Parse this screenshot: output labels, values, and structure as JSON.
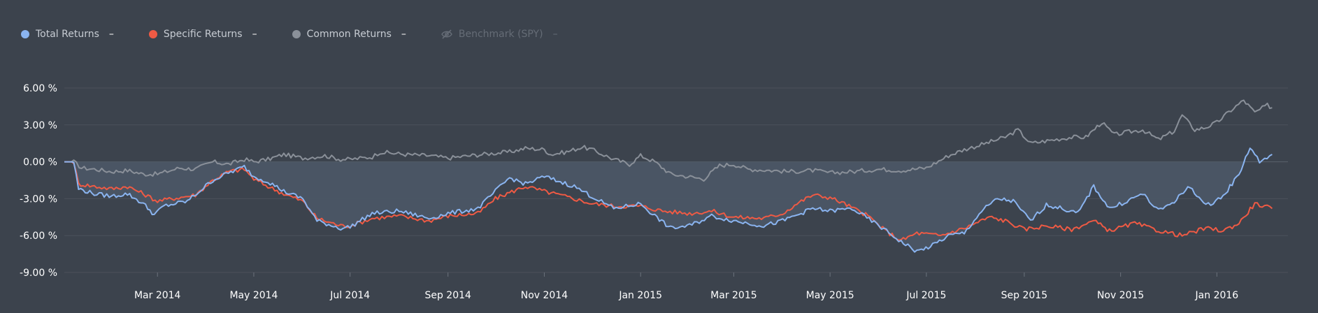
{
  "legend": {
    "items": [
      {
        "label": "Total Returns",
        "value": "–",
        "color": "#8ab4f0",
        "icon": "dot"
      },
      {
        "label": "Specific Returns",
        "value": "–",
        "color": "#ef5a44",
        "icon": "dot"
      },
      {
        "label": "Common Returns",
        "value": "–",
        "color": "#8a9099",
        "icon": "dot"
      },
      {
        "label": "Benchmark (SPY)",
        "value": "–",
        "color": "#656c76",
        "icon": "eye-off-icon",
        "disabled": true
      }
    ]
  },
  "chart_data": {
    "type": "line",
    "title": "",
    "xlabel": "",
    "ylabel": "",
    "ylim": [
      -9,
      6
    ],
    "xlim": [
      "2014-01-01",
      "2016-02-15"
    ],
    "y_ticks": [
      "6.00 %",
      "3.00 %",
      "0.00 %",
      "-3.00 %",
      "-6.00 %",
      "-9.00 %"
    ],
    "y_tick_values": [
      6,
      3,
      0,
      -3,
      -6,
      -9
    ],
    "x_ticks": [
      {
        "date": "2014-03-01",
        "label": "Mar 2014"
      },
      {
        "date": "2014-05-01",
        "label": "May 2014"
      },
      {
        "date": "2014-07-01",
        "label": "Jul 2014"
      },
      {
        "date": "2014-09-01",
        "label": "Sep 2014"
      },
      {
        "date": "2014-11-01",
        "label": "Nov 2014"
      },
      {
        "date": "2015-01-01",
        "label": "Jan 2015"
      },
      {
        "date": "2015-03-01",
        "label": "Mar 2015"
      },
      {
        "date": "2015-05-01",
        "label": "May 2015"
      },
      {
        "date": "2015-07-01",
        "label": "Jul 2015"
      },
      {
        "date": "2015-09-01",
        "label": "Sep 2015"
      },
      {
        "date": "2015-11-01",
        "label": "Nov 2015"
      },
      {
        "date": "2016-01-01",
        "label": "Jan 2016"
      }
    ],
    "grid": true,
    "legend_position": "top-left",
    "series": [
      {
        "name": "Common Returns",
        "color": "#8a9099",
        "points": [
          [
            "2014-01-01",
            0.0
          ],
          [
            "2014-01-07",
            0.0
          ],
          [
            "2014-01-12",
            -0.5
          ],
          [
            "2014-01-20",
            -0.6
          ],
          [
            "2014-01-31",
            -0.8
          ],
          [
            "2014-02-10",
            -0.7
          ],
          [
            "2014-02-20",
            -1.0
          ],
          [
            "2014-03-01",
            -1.0
          ],
          [
            "2014-03-15",
            -0.5
          ],
          [
            "2014-03-25",
            -0.6
          ],
          [
            "2014-04-05",
            0.0
          ],
          [
            "2014-04-15",
            -0.2
          ],
          [
            "2014-04-25",
            0.2
          ],
          [
            "2014-05-01",
            0.0
          ],
          [
            "2014-05-10",
            0.2
          ],
          [
            "2014-05-20",
            0.6
          ],
          [
            "2014-06-01",
            0.3
          ],
          [
            "2014-06-15",
            0.5
          ],
          [
            "2014-06-25",
            0.2
          ],
          [
            "2014-07-01",
            0.2
          ],
          [
            "2014-07-15",
            0.4
          ],
          [
            "2014-07-20",
            0.8
          ],
          [
            "2014-08-05",
            0.6
          ],
          [
            "2014-08-20",
            0.5
          ],
          [
            "2014-09-01",
            0.3
          ],
          [
            "2014-09-15",
            0.5
          ],
          [
            "2014-09-30",
            0.7
          ],
          [
            "2014-10-10",
            0.8
          ],
          [
            "2014-10-20",
            1.1
          ],
          [
            "2014-11-01",
            1.0
          ],
          [
            "2014-11-05",
            0.6
          ],
          [
            "2014-11-15",
            0.8
          ],
          [
            "2014-11-25",
            1.2
          ],
          [
            "2014-12-01",
            1.0
          ],
          [
            "2014-12-15",
            0.2
          ],
          [
            "2014-12-25",
            -0.2
          ],
          [
            "2015-01-01",
            0.5
          ],
          [
            "2015-01-10",
            0.0
          ],
          [
            "2015-01-20",
            -1.0
          ],
          [
            "2015-01-31",
            -1.2
          ],
          [
            "2015-02-10",
            -1.4
          ],
          [
            "2015-02-20",
            -0.3
          ],
          [
            "2015-03-01",
            -0.2
          ],
          [
            "2015-03-10",
            -0.6
          ],
          [
            "2015-03-25",
            -0.7
          ],
          [
            "2015-04-05",
            -0.8
          ],
          [
            "2015-04-20",
            -0.7
          ],
          [
            "2015-05-01",
            -0.9
          ],
          [
            "2015-05-15",
            -0.8
          ],
          [
            "2015-06-01",
            -0.6
          ],
          [
            "2015-06-15",
            -0.7
          ],
          [
            "2015-07-01",
            -0.5
          ],
          [
            "2015-07-15",
            0.5
          ],
          [
            "2015-07-25",
            1.0
          ],
          [
            "2015-08-05",
            1.4
          ],
          [
            "2015-08-20",
            2.0
          ],
          [
            "2015-08-28",
            2.6
          ],
          [
            "2015-09-05",
            1.5
          ],
          [
            "2015-09-20",
            1.8
          ],
          [
            "2015-10-01",
            2.0
          ],
          [
            "2015-10-10",
            2.0
          ],
          [
            "2015-10-20",
            3.2
          ],
          [
            "2015-10-28",
            2.2
          ],
          [
            "2015-11-05",
            2.4
          ],
          [
            "2015-11-15",
            2.6
          ],
          [
            "2015-11-25",
            1.8
          ],
          [
            "2015-12-05",
            2.5
          ],
          [
            "2015-12-10",
            3.8
          ],
          [
            "2015-12-18",
            2.6
          ],
          [
            "2015-12-25",
            2.8
          ],
          [
            "2016-01-01",
            3.2
          ],
          [
            "2016-01-10",
            4.2
          ],
          [
            "2016-01-18",
            5.0
          ],
          [
            "2016-01-25",
            4.0
          ],
          [
            "2016-02-02",
            4.6
          ],
          [
            "2016-02-05",
            4.4
          ]
        ]
      },
      {
        "name": "Specific Returns",
        "color": "#ef5a44",
        "points": [
          [
            "2014-01-01",
            0.0
          ],
          [
            "2014-01-07",
            0.0
          ],
          [
            "2014-01-10",
            -1.8
          ],
          [
            "2014-01-20",
            -2.0
          ],
          [
            "2014-01-31",
            -2.2
          ],
          [
            "2014-02-10",
            -2.0
          ],
          [
            "2014-02-20",
            -2.6
          ],
          [
            "2014-03-01",
            -3.2
          ],
          [
            "2014-03-10",
            -3.0
          ],
          [
            "2014-03-25",
            -2.7
          ],
          [
            "2014-04-05",
            -1.5
          ],
          [
            "2014-04-15",
            -0.8
          ],
          [
            "2014-04-25",
            -0.6
          ],
          [
            "2014-05-01",
            -1.4
          ],
          [
            "2014-05-10",
            -2.0
          ],
          [
            "2014-05-20",
            -2.6
          ],
          [
            "2014-06-01",
            -3.2
          ],
          [
            "2014-06-10",
            -4.6
          ],
          [
            "2014-06-25",
            -5.2
          ],
          [
            "2014-07-01",
            -5.2
          ],
          [
            "2014-07-15",
            -4.6
          ],
          [
            "2014-08-01",
            -4.4
          ],
          [
            "2014-08-20",
            -4.8
          ],
          [
            "2014-09-01",
            -4.4
          ],
          [
            "2014-09-20",
            -4.2
          ],
          [
            "2014-10-01",
            -3.0
          ],
          [
            "2014-10-10",
            -2.5
          ],
          [
            "2014-10-20",
            -2.0
          ],
          [
            "2014-11-01",
            -2.4
          ],
          [
            "2014-11-20",
            -3.0
          ],
          [
            "2014-12-01",
            -3.4
          ],
          [
            "2014-12-15",
            -3.6
          ],
          [
            "2015-01-01",
            -3.6
          ],
          [
            "2015-01-15",
            -4.0
          ],
          [
            "2015-02-01",
            -4.2
          ],
          [
            "2015-02-15",
            -4.0
          ],
          [
            "2015-03-01",
            -4.5
          ],
          [
            "2015-03-20",
            -4.6
          ],
          [
            "2015-04-01",
            -4.2
          ],
          [
            "2015-04-10",
            -3.4
          ],
          [
            "2015-04-20",
            -2.7
          ],
          [
            "2015-05-01",
            -2.9
          ],
          [
            "2015-05-10",
            -3.4
          ],
          [
            "2015-05-25",
            -4.4
          ],
          [
            "2015-06-05",
            -5.6
          ],
          [
            "2015-06-15",
            -6.4
          ],
          [
            "2015-06-25",
            -5.8
          ],
          [
            "2015-07-10",
            -6.0
          ],
          [
            "2015-07-25",
            -5.4
          ],
          [
            "2015-08-10",
            -4.5
          ],
          [
            "2015-08-20",
            -4.8
          ],
          [
            "2015-09-01",
            -5.5
          ],
          [
            "2015-09-15",
            -5.2
          ],
          [
            "2015-10-01",
            -5.5
          ],
          [
            "2015-10-15",
            -4.8
          ],
          [
            "2015-10-25",
            -5.6
          ],
          [
            "2015-11-10",
            -5.0
          ],
          [
            "2015-11-25",
            -5.6
          ],
          [
            "2015-12-10",
            -6.0
          ],
          [
            "2015-12-25",
            -5.4
          ],
          [
            "2016-01-05",
            -5.6
          ],
          [
            "2016-01-15",
            -5.0
          ],
          [
            "2016-01-25",
            -3.4
          ],
          [
            "2016-02-05",
            -3.8
          ]
        ]
      },
      {
        "name": "Total Returns",
        "color": "#8ab4f0",
        "points": [
          [
            "2014-01-01",
            0.0
          ],
          [
            "2014-01-07",
            0.0
          ],
          [
            "2014-01-10",
            -2.2
          ],
          [
            "2014-01-20",
            -2.6
          ],
          [
            "2014-01-31",
            -2.8
          ],
          [
            "2014-02-10",
            -2.6
          ],
          [
            "2014-02-20",
            -3.4
          ],
          [
            "2014-02-27",
            -4.3
          ],
          [
            "2014-03-05",
            -3.6
          ],
          [
            "2014-03-20",
            -3.2
          ],
          [
            "2014-04-05",
            -1.5
          ],
          [
            "2014-04-15",
            -0.9
          ],
          [
            "2014-04-25",
            -0.4
          ],
          [
            "2014-05-01",
            -1.2
          ],
          [
            "2014-05-10",
            -1.6
          ],
          [
            "2014-05-20",
            -2.4
          ],
          [
            "2014-06-01",
            -3.0
          ],
          [
            "2014-06-10",
            -4.8
          ],
          [
            "2014-06-25",
            -5.4
          ],
          [
            "2014-07-01",
            -5.3
          ],
          [
            "2014-07-15",
            -4.2
          ],
          [
            "2014-08-01",
            -4.0
          ],
          [
            "2014-08-20",
            -4.6
          ],
          [
            "2014-09-01",
            -4.2
          ],
          [
            "2014-09-20",
            -3.8
          ],
          [
            "2014-10-01",
            -2.4
          ],
          [
            "2014-10-10",
            -1.3
          ],
          [
            "2014-10-20",
            -1.8
          ],
          [
            "2014-11-01",
            -1.2
          ],
          [
            "2014-11-20",
            -2.0
          ],
          [
            "2014-12-01",
            -2.8
          ],
          [
            "2014-12-15",
            -3.8
          ],
          [
            "2015-01-01",
            -3.4
          ],
          [
            "2015-01-10",
            -4.4
          ],
          [
            "2015-01-20",
            -5.4
          ],
          [
            "2015-02-01",
            -5.2
          ],
          [
            "2015-02-15",
            -4.4
          ],
          [
            "2015-03-01",
            -4.8
          ],
          [
            "2015-03-20",
            -5.2
          ],
          [
            "2015-04-01",
            -4.8
          ],
          [
            "2015-04-20",
            -3.8
          ],
          [
            "2015-05-01",
            -4.0
          ],
          [
            "2015-05-15",
            -3.8
          ],
          [
            "2015-06-01",
            -5.2
          ],
          [
            "2015-06-15",
            -6.5
          ],
          [
            "2015-06-25",
            -7.3
          ],
          [
            "2015-07-05",
            -6.8
          ],
          [
            "2015-07-15",
            -6.0
          ],
          [
            "2015-07-25",
            -5.8
          ],
          [
            "2015-08-05",
            -4.0
          ],
          [
            "2015-08-15",
            -3.0
          ],
          [
            "2015-08-25",
            -3.2
          ],
          [
            "2015-09-05",
            -4.8
          ],
          [
            "2015-09-15",
            -3.5
          ],
          [
            "2015-09-25",
            -3.8
          ],
          [
            "2015-10-05",
            -4.2
          ],
          [
            "2015-10-15",
            -2.0
          ],
          [
            "2015-10-25",
            -3.8
          ],
          [
            "2015-11-05",
            -3.2
          ],
          [
            "2015-11-15",
            -2.6
          ],
          [
            "2015-11-25",
            -4.0
          ],
          [
            "2015-12-05",
            -3.2
          ],
          [
            "2015-12-15",
            -2.0
          ],
          [
            "2015-12-25",
            -3.6
          ],
          [
            "2016-01-05",
            -2.8
          ],
          [
            "2016-01-15",
            -1.0
          ],
          [
            "2016-01-22",
            1.2
          ],
          [
            "2016-01-28",
            0.0
          ],
          [
            "2016-02-05",
            0.6
          ]
        ]
      }
    ]
  }
}
